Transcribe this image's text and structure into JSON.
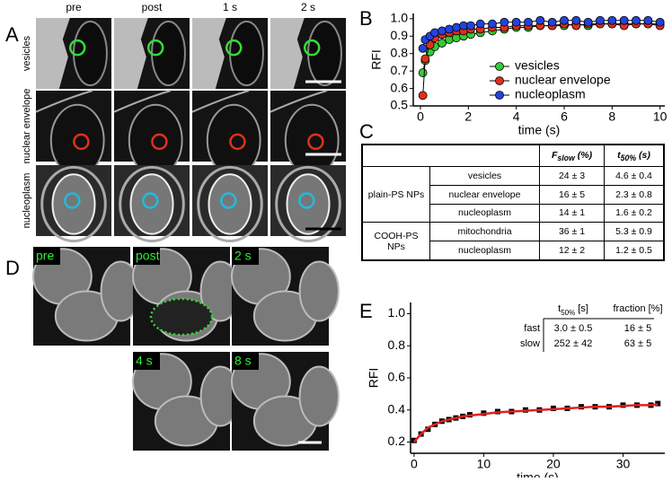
{
  "panel_labels": [
    "A",
    "B",
    "C",
    "D",
    "E"
  ],
  "panel_a": {
    "columns": [
      "pre",
      "post",
      "1 s",
      "2 s"
    ],
    "rows": [
      "vesicles",
      "nuclear envelope",
      "nucleoplasm"
    ]
  },
  "panel_d": {
    "labels": [
      "pre",
      "post",
      "2 s",
      "4 s",
      "8 s"
    ]
  },
  "table": {
    "headers": [
      {
        "main": "F",
        "sub": "slow",
        "tail": " (%)"
      },
      {
        "main": "t",
        "sub": "50%",
        "tail": " (s)"
      }
    ],
    "groups": [
      {
        "label": "plain-PS NPs",
        "rows": [
          [
            "vesicles",
            "24  ± 3",
            "4.6 ± 0.4"
          ],
          [
            "nuclear envelope",
            "16  ± 5",
            "2.3 ± 0.8"
          ],
          [
            "nucleoplasm",
            "14  ± 1",
            "1.6 ± 0.2"
          ]
        ]
      },
      {
        "label": "COOH-PS NPs",
        "rows": [
          [
            "mitochondria",
            "36  ± 1",
            "5.3 ± 0.9"
          ],
          [
            "nucleoplasm",
            "12  ± 2",
            "1.2 ± 0.5"
          ]
        ]
      }
    ]
  },
  "inset_table": {
    "headers": [
      {
        "main": "t",
        "sub": "50%",
        "tail": " [s]"
      },
      {
        "main": "fraction [%]",
        "sub": "",
        "tail": ""
      }
    ],
    "rows": [
      [
        "fast",
        "3.0 ± 0.5",
        "16 ± 5"
      ],
      [
        "slow",
        "252 ± 42",
        "63 ± 5"
      ]
    ]
  },
  "chart_data": [
    {
      "type": "line",
      "xlabel": "time (s)",
      "ylabel": "RFI",
      "x": [
        0.1,
        0.2,
        0.4,
        0.6,
        0.9,
        1.2,
        1.5,
        1.8,
        2.1,
        2.5,
        3,
        3.5,
        4,
        4.5,
        5,
        5.5,
        6,
        6.5,
        7,
        7.5,
        8,
        8.5,
        9,
        9.5,
        10
      ],
      "xlim": [
        -0.3,
        10.2
      ],
      "xticks": [
        0,
        2,
        4,
        6,
        8,
        10
      ],
      "ylim": [
        0.5,
        1.03
      ],
      "yticks": [
        0.5,
        0.6,
        0.7,
        0.8,
        0.9,
        {
          "value": 1,
          "label": "1.0"
        }
      ],
      "legend": "lower right",
      "series": [
        {
          "name": "vesicles",
          "color": "#33cc33",
          "values": [
            0.69,
            0.76,
            0.81,
            0.84,
            0.86,
            0.88,
            0.89,
            0.9,
            0.91,
            0.92,
            0.93,
            0.94,
            0.95,
            0.95,
            0.96,
            0.96,
            0.96,
            0.97,
            0.96,
            0.97,
            0.97,
            0.97,
            0.97,
            0.97,
            0.97
          ]
        },
        {
          "name": "nuclear envelope",
          "color": "#e0301a",
          "values": [
            0.56,
            0.77,
            0.85,
            0.89,
            0.91,
            0.92,
            0.93,
            0.93,
            0.94,
            0.94,
            0.95,
            0.95,
            0.96,
            0.96,
            0.96,
            0.96,
            0.97,
            0.96,
            0.97,
            0.97,
            0.97,
            0.96,
            0.97,
            0.97,
            0.96
          ]
        },
        {
          "name": "nucleoplasm",
          "color": "#2244dd",
          "values": [
            0.83,
            0.88,
            0.9,
            0.92,
            0.93,
            0.94,
            0.95,
            0.96,
            0.96,
            0.97,
            0.97,
            0.98,
            0.98,
            0.98,
            0.99,
            0.98,
            0.99,
            0.99,
            0.98,
            0.99,
            0.99,
            0.99,
            0.99,
            0.99,
            0.98
          ]
        }
      ]
    },
    {
      "type": "line",
      "xlabel": "time (s)",
      "ylabel": "RFI",
      "x": [
        0,
        1,
        2,
        3,
        4,
        5,
        6,
        7,
        8,
        10,
        12,
        14,
        16,
        18,
        20,
        22,
        24,
        26,
        28,
        30,
        32,
        34,
        35
      ],
      "xlim": [
        -0.5,
        36
      ],
      "xticks": [
        0,
        10,
        20,
        30
      ],
      "ylim": [
        0.13,
        1.07
      ],
      "yticks": [
        0.2,
        0.4,
        0.6,
        0.8,
        {
          "value": 1,
          "label": "1.0"
        }
      ],
      "series": [
        {
          "color": "#000000",
          "marker": "square",
          "values": [
            0.21,
            0.25,
            0.28,
            0.31,
            0.33,
            0.34,
            0.35,
            0.36,
            0.37,
            0.38,
            0.39,
            0.39,
            0.4,
            0.4,
            0.41,
            0.41,
            0.42,
            0.42,
            0.42,
            0.43,
            0.43,
            0.43,
            0.44
          ]
        },
        {
          "color": "#e02020",
          "marker": "none",
          "values": [
            0.2,
            0.25,
            0.29,
            0.31,
            0.33,
            0.34,
            0.35,
            0.36,
            0.365,
            0.375,
            0.385,
            0.39,
            0.395,
            0.4,
            0.405,
            0.41,
            0.415,
            0.42,
            0.42,
            0.425,
            0.43,
            0.43,
            0.435
          ]
        }
      ]
    }
  ]
}
